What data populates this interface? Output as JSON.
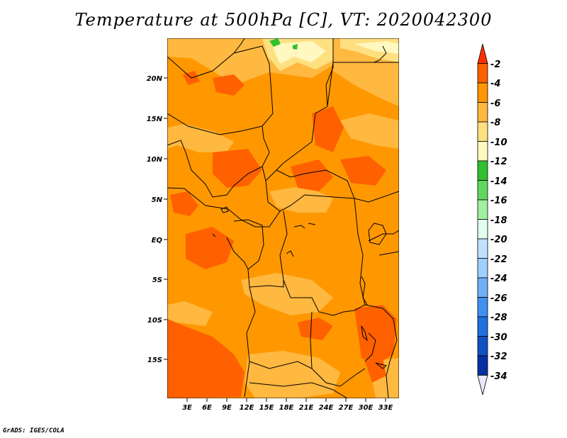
{
  "title": "Temperature at 500hPa [C], VT: 2020042300",
  "footer": "GrADS: IGES/COLA",
  "axes": {
    "lat_labels": [
      "20N",
      "15N",
      "10N",
      "5N",
      "EQ",
      "5S",
      "10S",
      "15S"
    ],
    "lon_labels": [
      "3E",
      "6E",
      "9E",
      "12E",
      "15E",
      "18E",
      "21E",
      "24E",
      "27E",
      "30E",
      "33E"
    ]
  },
  "colorbar": {
    "labels": [
      "-2",
      "-4",
      "-6",
      "-8",
      "-10",
      "-12",
      "-14",
      "-16",
      "-18",
      "-20",
      "-22",
      "-24",
      "-26",
      "-28",
      "-30",
      "-32",
      "-34"
    ],
    "colors": [
      "#ff3000",
      "#ff6000",
      "#ff9800",
      "#ffb840",
      "#ffe080",
      "#fff8c0",
      "#30c030",
      "#60d860",
      "#a0f0a0",
      "#e0fff0",
      "#c0e0ff",
      "#a0d0ff",
      "#70b0f8",
      "#4090f0",
      "#2070e0",
      "#1050c0",
      "#0830a0",
      "#000070"
    ]
  },
  "map_colors": {
    "t_minus_2": "#ff6000",
    "t_minus_4": "#ff9800",
    "t_minus_6": "#ffb840",
    "t_minus_8": "#ffe080",
    "t_minus_10": "#fff8c0",
    "t_minus_14": "#30c030"
  }
}
